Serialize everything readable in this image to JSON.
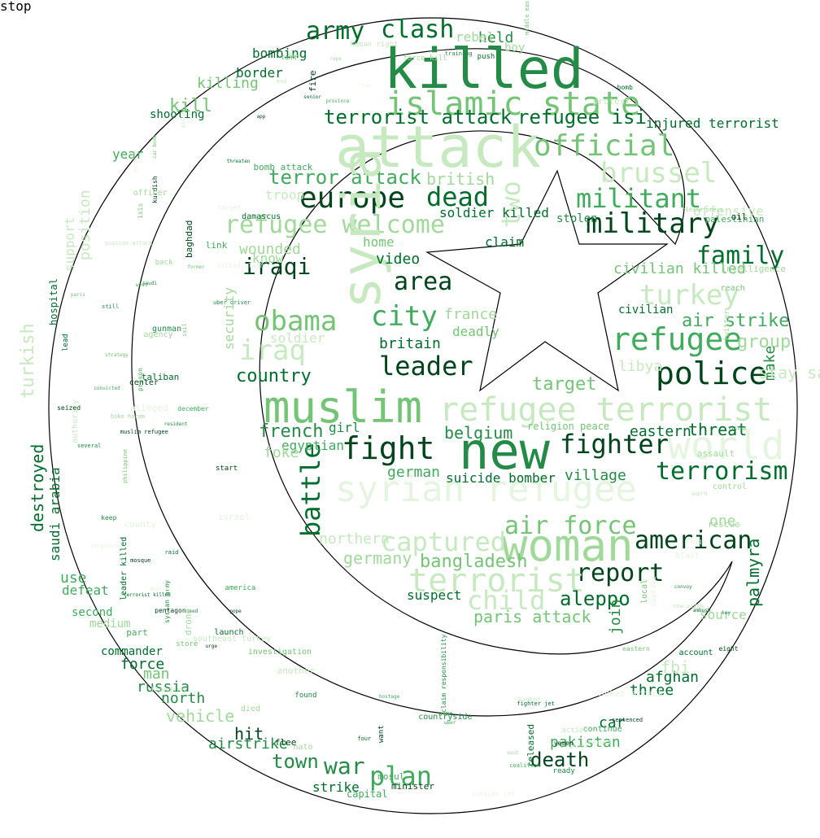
{
  "image": {
    "kind": "word-cloud",
    "mask_shape": "crescent-and-star",
    "palette": [
      "#00441b",
      "#006d2c",
      "#238b45",
      "#41ab5d",
      "#74c476",
      "#a1d99b",
      "#c7e9c0",
      "#e5f5e0"
    ]
  },
  "words": [
    {
      "text": "killed",
      "shade": 2
    },
    {
      "text": "attack",
      "shade": 6
    },
    {
      "text": "islamic state",
      "shade": 4
    },
    {
      "text": "muslim",
      "shade": 4
    },
    {
      "text": "new",
      "shade": 2
    },
    {
      "text": "syrian refugee",
      "shade": 7
    },
    {
      "text": "woman",
      "shade": 5
    },
    {
      "text": "refugee terrorist",
      "shade": 6
    },
    {
      "text": "army",
      "shade": 1
    },
    {
      "text": "clash",
      "shade": 1
    },
    {
      "text": "europe",
      "shade": 0
    },
    {
      "text": "dead",
      "shade": 1
    },
    {
      "text": "militant",
      "shade": 3
    },
    {
      "text": "military",
      "shade": 0
    },
    {
      "text": "refugee welcome",
      "shade": 5
    },
    {
      "text": "official",
      "shade": 4
    },
    {
      "text": "brussel",
      "shade": 6
    },
    {
      "text": "terrorist attack",
      "shade": 1
    },
    {
      "text": "refugee isi",
      "shade": 1
    },
    {
      "text": "two",
      "shade": 6
    },
    {
      "text": "terror attack",
      "shade": 3
    },
    {
      "text": "family",
      "shade": 1
    },
    {
      "text": "iraqi",
      "shade": 0
    },
    {
      "text": "area",
      "shade": 0
    },
    {
      "text": "city",
      "shade": 3
    },
    {
      "text": "obama",
      "shade": 4
    },
    {
      "text": "turkey",
      "shade": 6
    },
    {
      "text": "refugee",
      "shade": 3
    },
    {
      "text": "police",
      "shade": 0
    },
    {
      "text": "leader",
      "shade": 0
    },
    {
      "text": "iraq",
      "shade": 6
    },
    {
      "text": "fight",
      "shade": 0
    },
    {
      "text": "battle",
      "shade": 1
    },
    {
      "text": "fighter",
      "shade": 0
    },
    {
      "text": "terrorism",
      "shade": 1
    },
    {
      "text": "air force",
      "shade": 4
    },
    {
      "text": "american",
      "shade": 0
    },
    {
      "text": "report",
      "shade": 0
    },
    {
      "text": "terrorist",
      "shade": 6
    },
    {
      "text": "captured",
      "shade": 6
    },
    {
      "text": "aleppo",
      "shade": 1
    },
    {
      "text": "world",
      "shade": 7
    },
    {
      "text": "air strike",
      "shade": 3
    },
    {
      "text": "group",
      "shade": 5
    },
    {
      "text": "war",
      "shade": 2
    },
    {
      "text": "plan",
      "shade": 3
    },
    {
      "text": "death",
      "shade": 0
    },
    {
      "text": "town",
      "shade": 2
    },
    {
      "text": "destroyed",
      "shade": 1
    },
    {
      "text": "turkish",
      "shade": 6
    },
    {
      "text": "syria",
      "shade": 6
    },
    {
      "text": "child",
      "shade": 6
    },
    {
      "text": "country",
      "shade": 1
    },
    {
      "text": "french",
      "shade": 2
    },
    {
      "text": "belgium",
      "shade": 2
    },
    {
      "text": "germany",
      "shade": 5
    },
    {
      "text": "bangladesh",
      "shade": 4
    },
    {
      "text": "german",
      "shade": 3
    },
    {
      "text": "target",
      "shade": 4
    },
    {
      "text": "threat",
      "shade": 1
    },
    {
      "text": "eastern",
      "shade": 1
    },
    {
      "text": "village",
      "shade": 2
    },
    {
      "text": "suicide bomber",
      "shade": 1
    },
    {
      "text": "palmyra",
      "shade": 1
    },
    {
      "text": "join",
      "shade": 2
    },
    {
      "text": "suspect",
      "shade": 1
    },
    {
      "text": "paris attack",
      "shade": 4
    },
    {
      "text": "afghan",
      "shade": 1
    },
    {
      "text": "three",
      "shade": 1
    },
    {
      "text": "car",
      "shade": 1
    },
    {
      "text": "pakistan",
      "shade": 3
    },
    {
      "text": "hit",
      "shade": 0
    },
    {
      "text": "airstrike",
      "shade": 2
    },
    {
      "text": "strike",
      "shade": 1
    },
    {
      "text": "capital",
      "shade": 3
    },
    {
      "text": "force",
      "shade": 1
    },
    {
      "text": "man",
      "shade": 4
    },
    {
      "text": "russia",
      "shade": 2
    },
    {
      "text": "north",
      "shade": 2
    },
    {
      "text": "vehicle",
      "shade": 5
    },
    {
      "text": "saudi arabia",
      "shade": 1
    },
    {
      "text": "use",
      "shade": 3
    },
    {
      "text": "defeat",
      "shade": 3
    },
    {
      "text": "second",
      "shade": 3
    },
    {
      "text": "medium",
      "shade": 5
    },
    {
      "text": "commander",
      "shade": 1
    },
    {
      "text": "kill",
      "shade": 4
    },
    {
      "text": "killing",
      "shade": 4
    },
    {
      "text": "shooting",
      "shade": 1
    },
    {
      "text": "year",
      "shade": 3
    },
    {
      "text": "border",
      "shade": 1
    },
    {
      "text": "bombing",
      "shade": 1
    },
    {
      "text": "position",
      "shade": 6
    },
    {
      "text": "support",
      "shade": 6
    },
    {
      "text": "hospital",
      "shade": 1
    },
    {
      "text": "security",
      "shade": 5
    },
    {
      "text": "soldier",
      "shade": 6
    },
    {
      "text": "britain",
      "shade": 1
    },
    {
      "text": "france",
      "shade": 5
    },
    {
      "text": "deadly",
      "shade": 4
    },
    {
      "text": "video",
      "shade": 1
    },
    {
      "text": "claim",
      "shade": 1
    },
    {
      "text": "home",
      "shade": 4
    },
    {
      "text": "soldier killed",
      "shade": 1
    },
    {
      "text": "british",
      "shade": 5
    },
    {
      "text": "offensive",
      "shade": 6
    },
    {
      "text": "civilian",
      "shade": 1
    },
    {
      "text": "civilian killed",
      "shade": 4
    },
    {
      "text": "stolen",
      "shade": 2
    },
    {
      "text": "make",
      "shade": 2
    },
    {
      "text": "libya",
      "shade": 6
    },
    {
      "text": "girl",
      "shade": 2
    },
    {
      "text": "religion peace",
      "shade": 4
    },
    {
      "text": "injured terrorist",
      "shade": 1
    },
    {
      "text": "held",
      "shade": 2
    },
    {
      "text": "rebel",
      "shade": 5
    },
    {
      "text": "boy",
      "shade": 5
    },
    {
      "text": "egyptian",
      "shade": 3
    },
    {
      "text": "foke",
      "shade": 5
    },
    {
      "text": "troop",
      "shade": 6
    },
    {
      "text": "know",
      "shade": 5
    },
    {
      "text": "wounded",
      "shade": 5
    },
    {
      "text": "northern",
      "shade": 6
    },
    {
      "text": "one",
      "shade": 5
    },
    {
      "text": "stay safe",
      "shade": 6
    },
    {
      "text": "fbi",
      "shade": 6
    },
    {
      "text": "source",
      "shade": 5
    },
    {
      "text": "stop",
      "shade": 2
    }
  ],
  "small_words": [
    "isis",
    "boko haram",
    "taliban",
    "bomb attack",
    "syrian army",
    "palestinian",
    "kurdish",
    "coalition",
    "damascus",
    "rocket attack",
    "training",
    "sentenced",
    "linked",
    "authority",
    "still",
    "car bomb",
    "nato",
    "fire",
    "former",
    "raqqa",
    "mosul",
    "assault",
    "convoy",
    "raid",
    "victim",
    "warn",
    "face",
    "uber",
    "rape",
    "several",
    "israel",
    "eight",
    "month",
    "ready",
    "agency",
    "province",
    "recruit",
    "convicted",
    "seized",
    "released",
    "captive",
    "keep",
    "saudi",
    "senior",
    "west",
    "countryside",
    "hostage",
    "launch",
    "center",
    "tank",
    "protest",
    "killed clash",
    "store",
    "muslim refugee",
    "america",
    "baghdad",
    "start",
    "force kill",
    "intelligence",
    "please press",
    "flee",
    "another",
    "local",
    "prison",
    "threaten",
    "mosque",
    "philippine",
    "twitter",
    "southeast turkey",
    "continue",
    "county",
    "urge",
    "eastern",
    "terrorist killed",
    "middle east",
    "isil",
    "fighter jet",
    "strategy",
    "four",
    "rescue",
    "need",
    "found",
    "back",
    "flooding",
    "part",
    "december",
    "block",
    "picture",
    "key",
    "link",
    "minister",
    "blast",
    "uber driver",
    "lead",
    "east",
    "push",
    "river",
    "target",
    "pentagon",
    "account",
    "want",
    "oil",
    "resident",
    "targeted",
    "action",
    "russian jet",
    "pope",
    "new video",
    "leader killed",
    "claim responsibility",
    "human right",
    "bomb",
    "investigation",
    "alleged",
    "ambush",
    "died",
    "gunman",
    "suicide attack",
    "paris",
    "app",
    "end",
    "control",
    "reach",
    "governor",
    "officer",
    "drone",
    "yemen",
    "name"
  ]
}
